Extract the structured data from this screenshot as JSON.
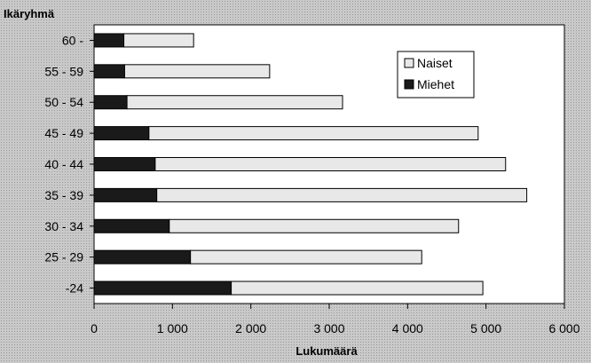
{
  "chart_data": {
    "type": "bar",
    "orientation": "horizontal",
    "stacked": true,
    "ylabel": "Ikäryhmä",
    "xlabel": "Lukumäärä",
    "categories": [
      "60 -",
      "55 - 59",
      "50 - 54",
      "45 - 49",
      "40 - 44",
      "35 - 39",
      "30 - 34",
      "25 - 29",
      "-24"
    ],
    "series": [
      {
        "name": "Miehet",
        "color": "#1a1a1a",
        "values": [
          380,
          390,
          420,
          700,
          780,
          800,
          960,
          1230,
          1750
        ]
      },
      {
        "name": "Naiset",
        "color": "#e8e8e8",
        "values": [
          890,
          1850,
          2750,
          4200,
          4470,
          4720,
          3690,
          2950,
          3210
        ]
      }
    ],
    "xlim": [
      0,
      6000
    ],
    "xticks": [
      0,
      1000,
      2000,
      3000,
      4000,
      5000,
      6000
    ],
    "xtick_labels": [
      "0",
      "1 000",
      "2 000",
      "3 000",
      "4 000",
      "5 000",
      "6 000"
    ],
    "legend": {
      "position": "top-right",
      "order": [
        "Naiset",
        "Miehet"
      ]
    },
    "grid": false
  }
}
